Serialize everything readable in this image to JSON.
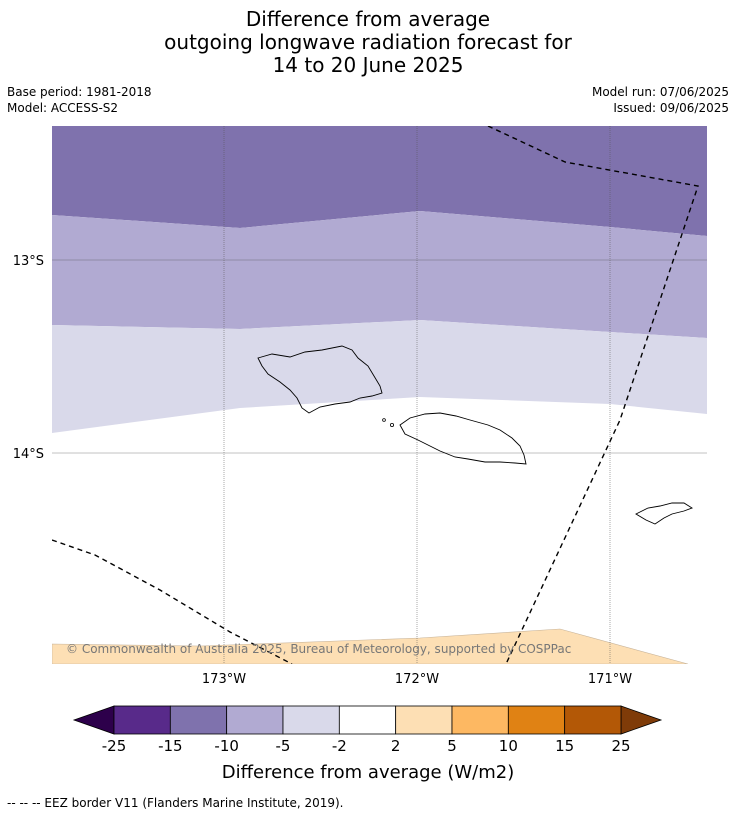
{
  "title": {
    "line1": "Difference from average",
    "line2": "outgoing longwave radiation forecast for",
    "line3": "14 to 20 June 2025"
  },
  "meta": {
    "base_period": "Base period: 1981-2018",
    "model": "Model: ACCESS-S2",
    "model_run": "Model run: 07/06/2025",
    "issued": "Issued: 09/06/2025"
  },
  "map": {
    "lat_labels": [
      "13°S",
      "14°S"
    ],
    "lon_labels": [
      "173°W",
      "172°W",
      "171°W"
    ],
    "copyright": "© Commonwealth of Australia 2025, Bureau of Meteorology, supported by COSPPac",
    "colors": {
      "band_-15": "#7f72ad",
      "band_-10": "#b1aad2",
      "band_-5": "#d9d9ea",
      "band_2": "#fddfb4",
      "land_outline": "#000000",
      "eez": "#000000"
    }
  },
  "colorbar": {
    "ticks": [
      "-25",
      "-15",
      "-10",
      "-5",
      "-2",
      "2",
      "5",
      "10",
      "15",
      "25"
    ],
    "colors": [
      "#582a8a",
      "#7f72ad",
      "#b1aad2",
      "#d9d9ea",
      "#ffffff",
      "#fddfb4",
      "#fdb862",
      "#e08214",
      "#b35806"
    ],
    "extend_low_color": "#2d004b",
    "extend_high_color": "#7f3b08",
    "label": "Difference from average (W/m2)"
  },
  "footer": {
    "legend": "--  --  -- EEZ border V11 (Flanders Marine Institute, 2019)."
  }
}
